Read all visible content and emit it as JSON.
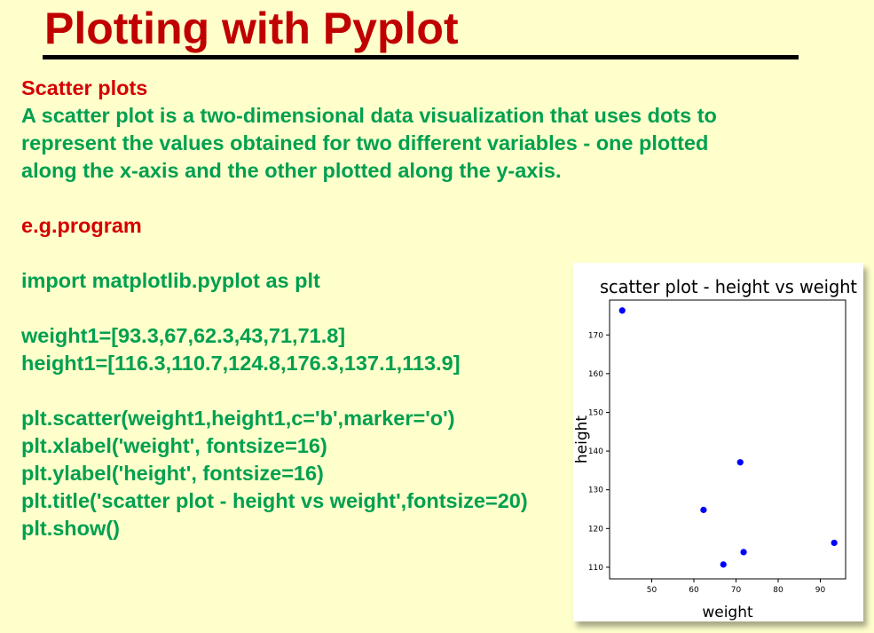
{
  "slide": {
    "title": "Plotting with Pyplot",
    "section_heading": "Scatter plots",
    "description": [
      "A scatter plot is a two-dimensional data visualization that uses dots to",
      "represent the values obtained for two different variables - one plotted",
      "along the x-axis and the other plotted along the y-axis."
    ],
    "example_label": "e.g.program",
    "code": {
      "import_line": "import matplotlib.pyplot as plt",
      "data_lines": [
        "weight1=[93.3,67,62.3,43,71,71.8]",
        "height1=[116.3,110.7,124.8,176.3,137.1,113.9]"
      ],
      "call_lines": [
        "plt.scatter(weight1,height1,c='b',marker='o')",
        "plt.xlabel('weight', fontsize=16)",
        "plt.ylabel('height', fontsize=16)",
        "plt.title('scatter plot - height vs weight',fontsize=20)",
        "plt.show()"
      ]
    }
  },
  "colors": {
    "background": "#ffffcc",
    "title": "#c00000",
    "heading": "#d40000",
    "text": "#00a050",
    "marker": "#0000ff"
  },
  "chart_data": {
    "type": "scatter",
    "title": "scatter plot - height vs weight",
    "xlabel": "weight",
    "ylabel": "height",
    "x": [
      93.3,
      67,
      62.3,
      43,
      71,
      71.8
    ],
    "y": [
      116.3,
      110.7,
      124.8,
      176.3,
      137.1,
      113.9
    ],
    "x_ticks": [
      "50",
      "60",
      "70",
      "80",
      "90"
    ],
    "y_ticks": [
      "110",
      "120",
      "130",
      "140",
      "150",
      "160",
      "170"
    ],
    "xlim": [
      40,
      96
    ],
    "ylim": [
      107,
      179
    ],
    "marker_color": "#0000ff",
    "marker": "o",
    "grid": false
  }
}
